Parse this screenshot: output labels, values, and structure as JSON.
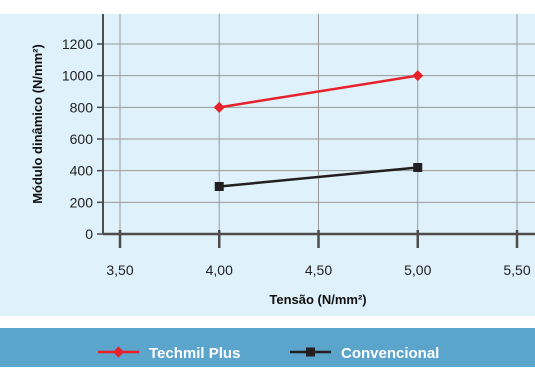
{
  "chart_data": {
    "type": "line",
    "xlabel": "Tensão (N/mm²)",
    "ylabel": "Módulo dinâmico (N/mm²)",
    "xlim": [
      3.5,
      5.5
    ],
    "ylim": [
      0,
      1200
    ],
    "x_ticks": [
      3.5,
      4.0,
      4.5,
      5.0,
      5.5
    ],
    "x_tick_labels": [
      "3,50",
      "4,00",
      "4,50",
      "5,00",
      "5,50"
    ],
    "y_ticks": [
      0,
      200,
      400,
      600,
      800,
      1000,
      1200
    ],
    "y_tick_labels": [
      "0",
      "200",
      "400",
      "600",
      "800",
      "1000",
      "1200"
    ],
    "grid": true,
    "legend_position": "bottom",
    "series": [
      {
        "name": "Techmil Plus",
        "marker": "diamond",
        "color": "#e8212b",
        "x": [
          4.0,
          5.0
        ],
        "y": [
          800,
          1000
        ]
      },
      {
        "name": "Convencional",
        "marker": "square",
        "color": "#231f20",
        "x": [
          4.0,
          5.0
        ],
        "y": [
          300,
          420
        ]
      }
    ]
  },
  "colors": {
    "plot_background": "#dff1fa",
    "legend_background": "#5ba4cc",
    "axis": "#4d4d4d",
    "grid": "#9a9a9a"
  }
}
